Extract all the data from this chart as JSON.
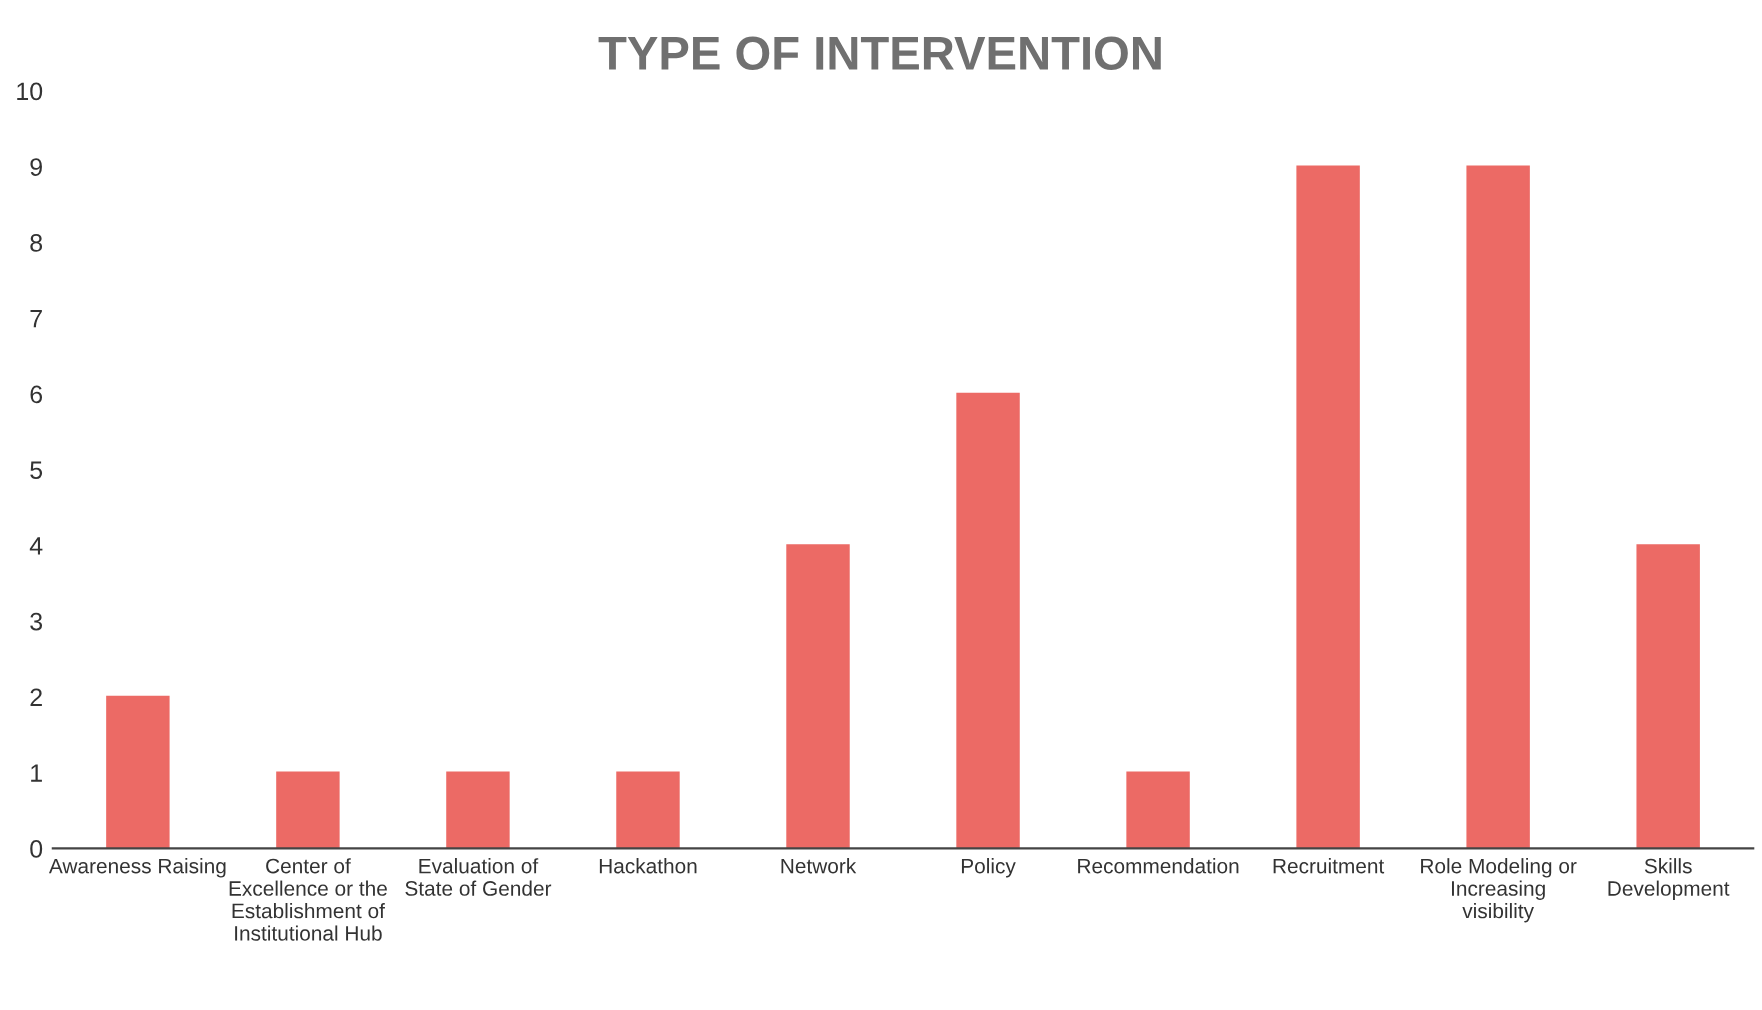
{
  "chart_data": {
    "type": "bar",
    "title": "TYPE OF INTERVENTION",
    "categories": [
      "Awareness Raising",
      "Center of Excellence or the Establishment of Institutional Hub",
      "Evaluation of State of Gender",
      "Hackathon",
      "Network",
      "Policy",
      "Recommendation",
      "Recruitment",
      "Role Modeling or Increasing visibility",
      "Skills Development"
    ],
    "values": [
      2,
      1,
      1,
      1,
      4,
      6,
      1,
      9,
      9,
      4
    ],
    "color": "#ec6a65",
    "ylim": [
      0,
      10
    ],
    "yticks": [
      0,
      1,
      2,
      3,
      4,
      5,
      6,
      7,
      8,
      9,
      10
    ],
    "grid": false,
    "legend": false
  }
}
